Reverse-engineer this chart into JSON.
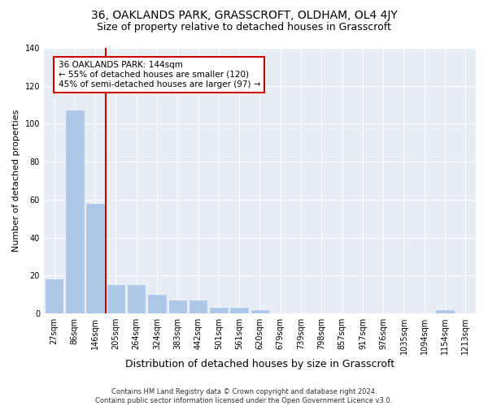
{
  "title": "36, OAKLANDS PARK, GRASSCROFT, OLDHAM, OL4 4JY",
  "subtitle": "Size of property relative to detached houses in Grasscroft",
  "xlabel": "Distribution of detached houses by size in Grasscroft",
  "ylabel": "Number of detached properties",
  "categories": [
    "27sqm",
    "86sqm",
    "146sqm",
    "205sqm",
    "264sqm",
    "324sqm",
    "383sqm",
    "442sqm",
    "501sqm",
    "561sqm",
    "620sqm",
    "679sqm",
    "739sqm",
    "798sqm",
    "857sqm",
    "917sqm",
    "976sqm",
    "1035sqm",
    "1094sqm",
    "1154sqm",
    "1213sqm"
  ],
  "values": [
    18,
    107,
    58,
    15,
    15,
    10,
    7,
    7,
    3,
    3,
    2,
    0,
    0,
    0,
    0,
    0,
    0,
    0,
    0,
    2,
    0
  ],
  "bar_color": "#aec6e8",
  "bar_edge_color": "#aec6e8",
  "vline_color": "#cc0000",
  "annotation_text": "36 OAKLANDS PARK: 144sqm\n← 55% of detached houses are smaller (120)\n45% of semi-detached houses are larger (97) →",
  "annotation_box_color": "#ffffff",
  "annotation_box_edge": "#cc0000",
  "ylim": [
    0,
    140
  ],
  "yticks": [
    0,
    20,
    40,
    60,
    80,
    100,
    120,
    140
  ],
  "background_color": "#e8eef5",
  "footer": "Contains HM Land Registry data © Crown copyright and database right 2024.\nContains public sector information licensed under the Open Government Licence v3.0.",
  "title_fontsize": 10,
  "subtitle_fontsize": 9,
  "xlabel_fontsize": 9,
  "ylabel_fontsize": 8,
  "tick_fontsize": 7,
  "footer_fontsize": 6,
  "annotation_fontsize": 7.5
}
